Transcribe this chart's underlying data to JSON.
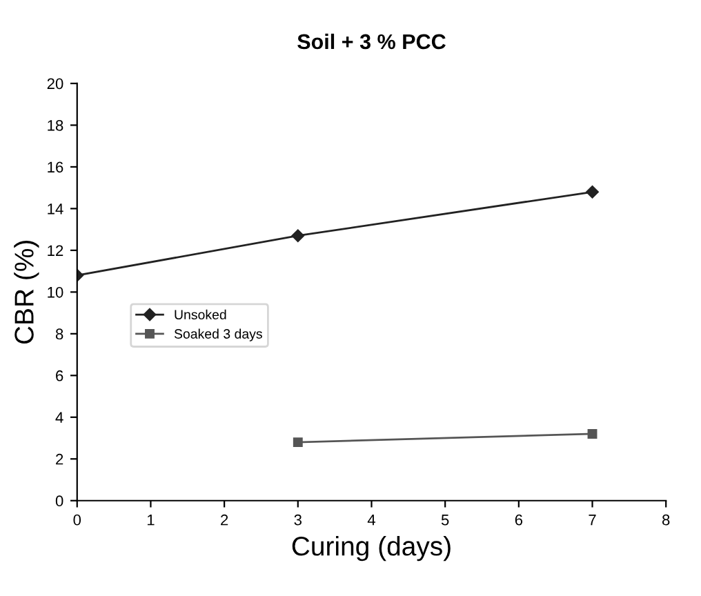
{
  "chart_data": {
    "type": "line",
    "title": "Soil + 3 % PCC",
    "xlabel": "Curing (days)",
    "ylabel": "CBR (%)",
    "xlim": [
      0,
      8
    ],
    "xticks": [
      0,
      1,
      2,
      3,
      4,
      5,
      6,
      7,
      8
    ],
    "ylim": [
      0,
      20
    ],
    "yticks": [
      0,
      2,
      4,
      6,
      8,
      10,
      12,
      14,
      16,
      18,
      20
    ],
    "grid": false,
    "legend": "center left",
    "series": [
      {
        "name": "Unsoked",
        "color": "#222222",
        "x": [
          0,
          3,
          7
        ],
        "values": [
          10.8,
          12.7,
          14.8
        ],
        "marker": "diamond"
      },
      {
        "name": "Soaked 3 days",
        "color": "#555555",
        "x": [
          3,
          7
        ],
        "values": [
          2.8,
          3.2
        ],
        "marker": "square"
      }
    ]
  }
}
